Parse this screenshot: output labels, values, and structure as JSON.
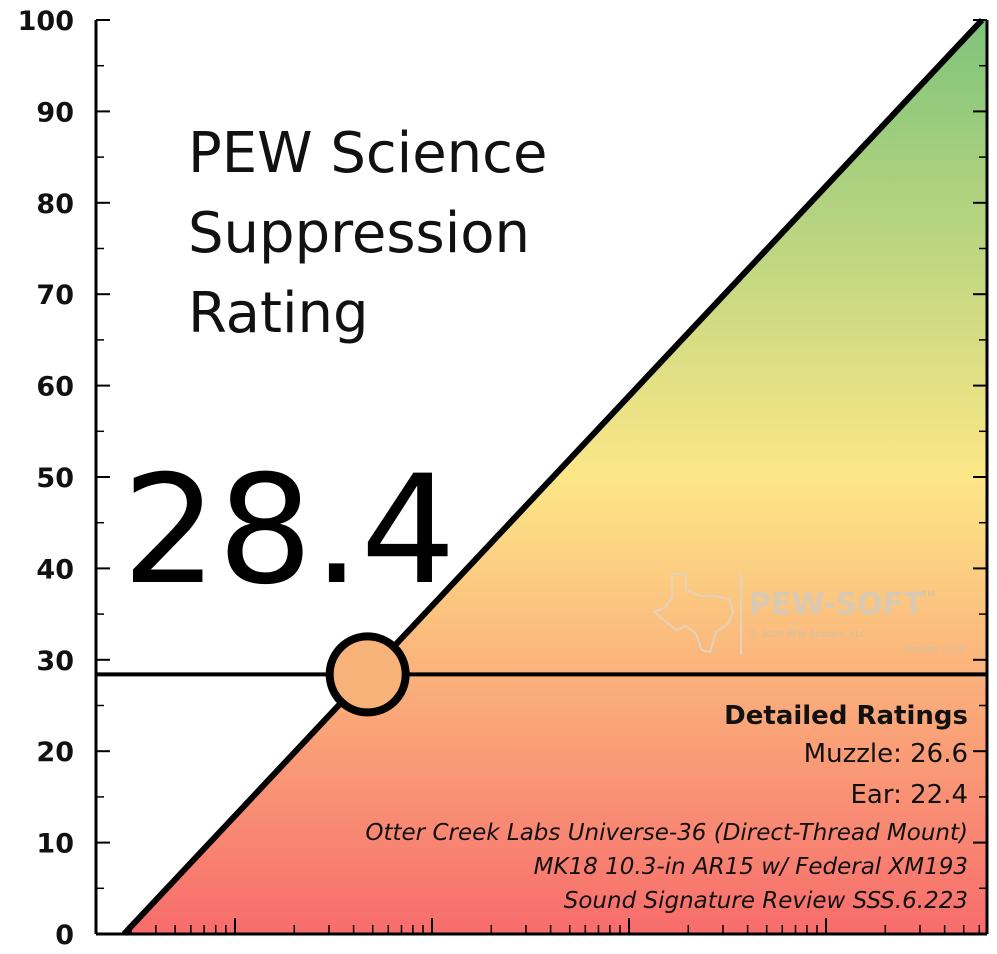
{
  "chart_data": {
    "type": "area",
    "title": [
      "PEW Science",
      "Suppression",
      "Rating"
    ],
    "score": "28.4",
    "score_value": 28.4,
    "ylim": [
      0,
      100
    ],
    "yticks": [
      "0",
      "10",
      "20",
      "30",
      "40",
      "50",
      "60",
      "70",
      "80",
      "90",
      "100"
    ],
    "x_scale": "log",
    "grid": false,
    "gradient_colors": {
      "bottom": "#f76c6c",
      "middle": "#fde787",
      "top": "#7ec47a"
    },
    "marker_color": "#f7b27a",
    "detailed": {
      "heading": "Detailed Ratings",
      "muzzle": "Muzzle: 26.6",
      "ear": "Ear: 22.4",
      "suppressor": "Otter Creek Labs Universe-36 (Direct-Thread Mount)",
      "host": "MK18 10.3-in AR15 w/ Federal XM193",
      "review": "Sound Signature Review SSS.6.223"
    }
  },
  "watermark": {
    "brand": "PEW-SOFT",
    "tm": "TM",
    "copyright": "© 2020 PEW Science, LLC",
    "version": "Version 1.0.2",
    "icon": "texas-map-icon"
  }
}
